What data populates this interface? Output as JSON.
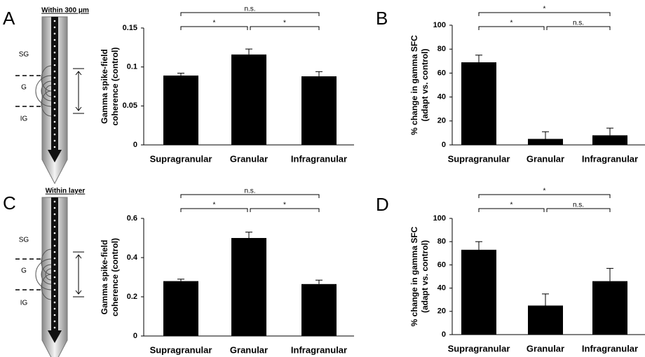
{
  "chart_data": [
    {
      "type": "bar",
      "panel_label": "A",
      "diagram": {
        "title": "Within 300 μm",
        "layers": [
          "SG",
          "G",
          "IG"
        ]
      },
      "ylabel": [
        "Gamma spike-field",
        "coherence (control)"
      ],
      "categories": [
        "Supragranular",
        "Granular",
        "Infragranular"
      ],
      "values": [
        0.089,
        0.116,
        0.088
      ],
      "errors": [
        0.003,
        0.007,
        0.006
      ],
      "color": "#000000",
      "ylim": [
        0,
        0.15
      ],
      "yticks": [
        0,
        0.05,
        0.1,
        0.15
      ],
      "significance": [
        {
          "from": 0,
          "to": 2,
          "label": "n.s."
        },
        {
          "from": 0,
          "to": 1,
          "label": "*"
        },
        {
          "from": 1,
          "to": 2,
          "label": "*"
        }
      ]
    },
    {
      "type": "bar",
      "panel_label": "B",
      "ylabel": [
        "% change in gamma SFC",
        "(adapt vs. control)"
      ],
      "categories": [
        "Supragranular",
        "Granular",
        "Infragranular"
      ],
      "values": [
        69,
        5,
        8
      ],
      "errors": [
        6,
        6,
        6
      ],
      "color": "#000000",
      "ylim": [
        0,
        100
      ],
      "yticks": [
        0,
        20,
        40,
        60,
        80,
        100
      ],
      "significance": [
        {
          "from": 0,
          "to": 2,
          "label": "*"
        },
        {
          "from": 0,
          "to": 1,
          "label": "*"
        },
        {
          "from": 1,
          "to": 2,
          "label": "n.s."
        }
      ]
    },
    {
      "type": "bar",
      "panel_label": "C",
      "diagram": {
        "title": "Within layer",
        "layers": [
          "SG",
          "G",
          "IG"
        ]
      },
      "ylabel": [
        "Gamma spike-field",
        "coherence (control)"
      ],
      "categories": [
        "Supragranular",
        "Granular",
        "Infragranular"
      ],
      "values": [
        0.28,
        0.5,
        0.265
      ],
      "errors": [
        0.01,
        0.03,
        0.02
      ],
      "color": "#000000",
      "ylim": [
        0,
        0.6
      ],
      "yticks": [
        0,
        0.2,
        0.4,
        0.6
      ],
      "significance": [
        {
          "from": 0,
          "to": 2,
          "label": "n.s."
        },
        {
          "from": 0,
          "to": 1,
          "label": "*"
        },
        {
          "from": 1,
          "to": 2,
          "label": "*"
        }
      ]
    },
    {
      "type": "bar",
      "panel_label": "D",
      "ylabel": [
        "% change in gamma SFC",
        "(adapt vs. control)"
      ],
      "categories": [
        "Supragranular",
        "Granular",
        "Infragranular"
      ],
      "values": [
        73,
        25,
        46
      ],
      "errors": [
        7,
        10,
        11
      ],
      "color": "#000000",
      "ylim": [
        0,
        100
      ],
      "yticks": [
        0,
        20,
        40,
        60,
        80,
        100
      ],
      "significance": [
        {
          "from": 0,
          "to": 2,
          "label": "*"
        },
        {
          "from": 0,
          "to": 1,
          "label": "*"
        },
        {
          "from": 1,
          "to": 2,
          "label": "n.s."
        }
      ]
    }
  ]
}
